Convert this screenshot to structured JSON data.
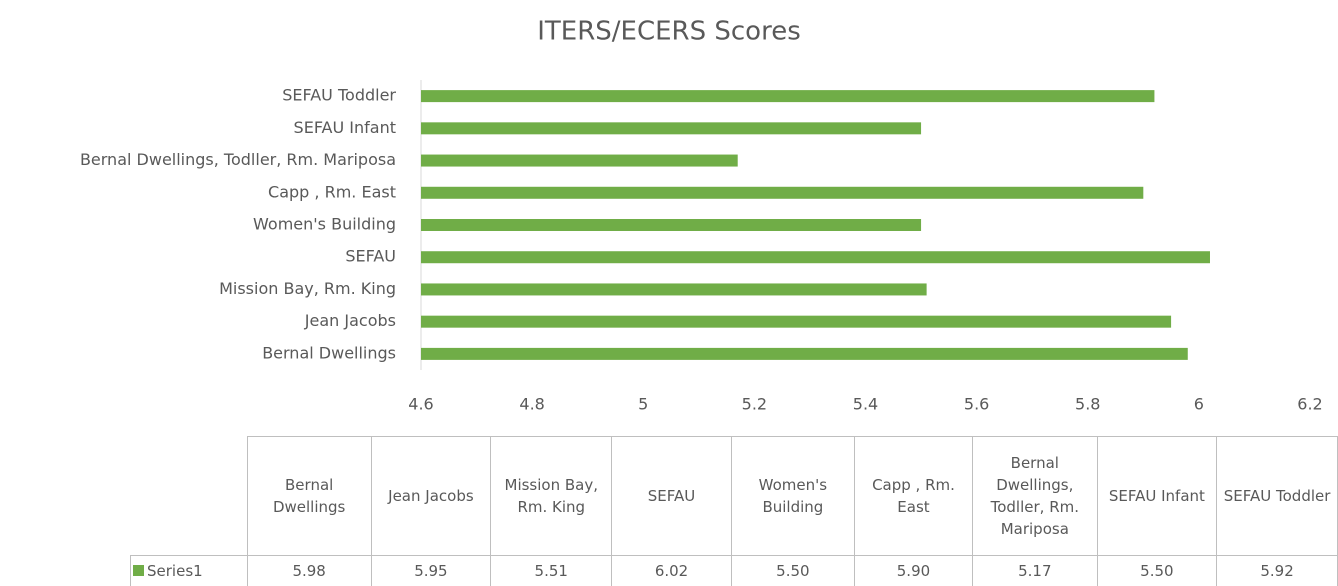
{
  "chart_data": {
    "type": "bar",
    "orientation": "horizontal",
    "title": "ITERS/ECERS Scores",
    "categories": [
      "Bernal Dwellings",
      "Jean Jacobs",
      "Mission Bay, Rm. King",
      "SEFAU",
      "Women's Building",
      "Capp , Rm. East",
      "Bernal Dwellings, Todller, Rm. Mariposa",
      "SEFAU Infant",
      "SEFAU Toddler"
    ],
    "series": [
      {
        "name": "Series1",
        "color": "#70ad47",
        "values": [
          5.98,
          5.95,
          5.51,
          6.02,
          5.5,
          5.9,
          5.17,
          5.5,
          5.92
        ],
        "value_labels": [
          "5.98",
          "5.95",
          "5.51",
          "6.02",
          "5.50",
          "5.90",
          "5.17",
          "5.50",
          "5.92"
        ]
      }
    ],
    "xlim": [
      4.6,
      6.2
    ],
    "xticks": [
      4.6,
      4.8,
      5,
      5.2,
      5.4,
      5.6,
      5.8,
      6,
      6.2
    ],
    "grid": false
  }
}
